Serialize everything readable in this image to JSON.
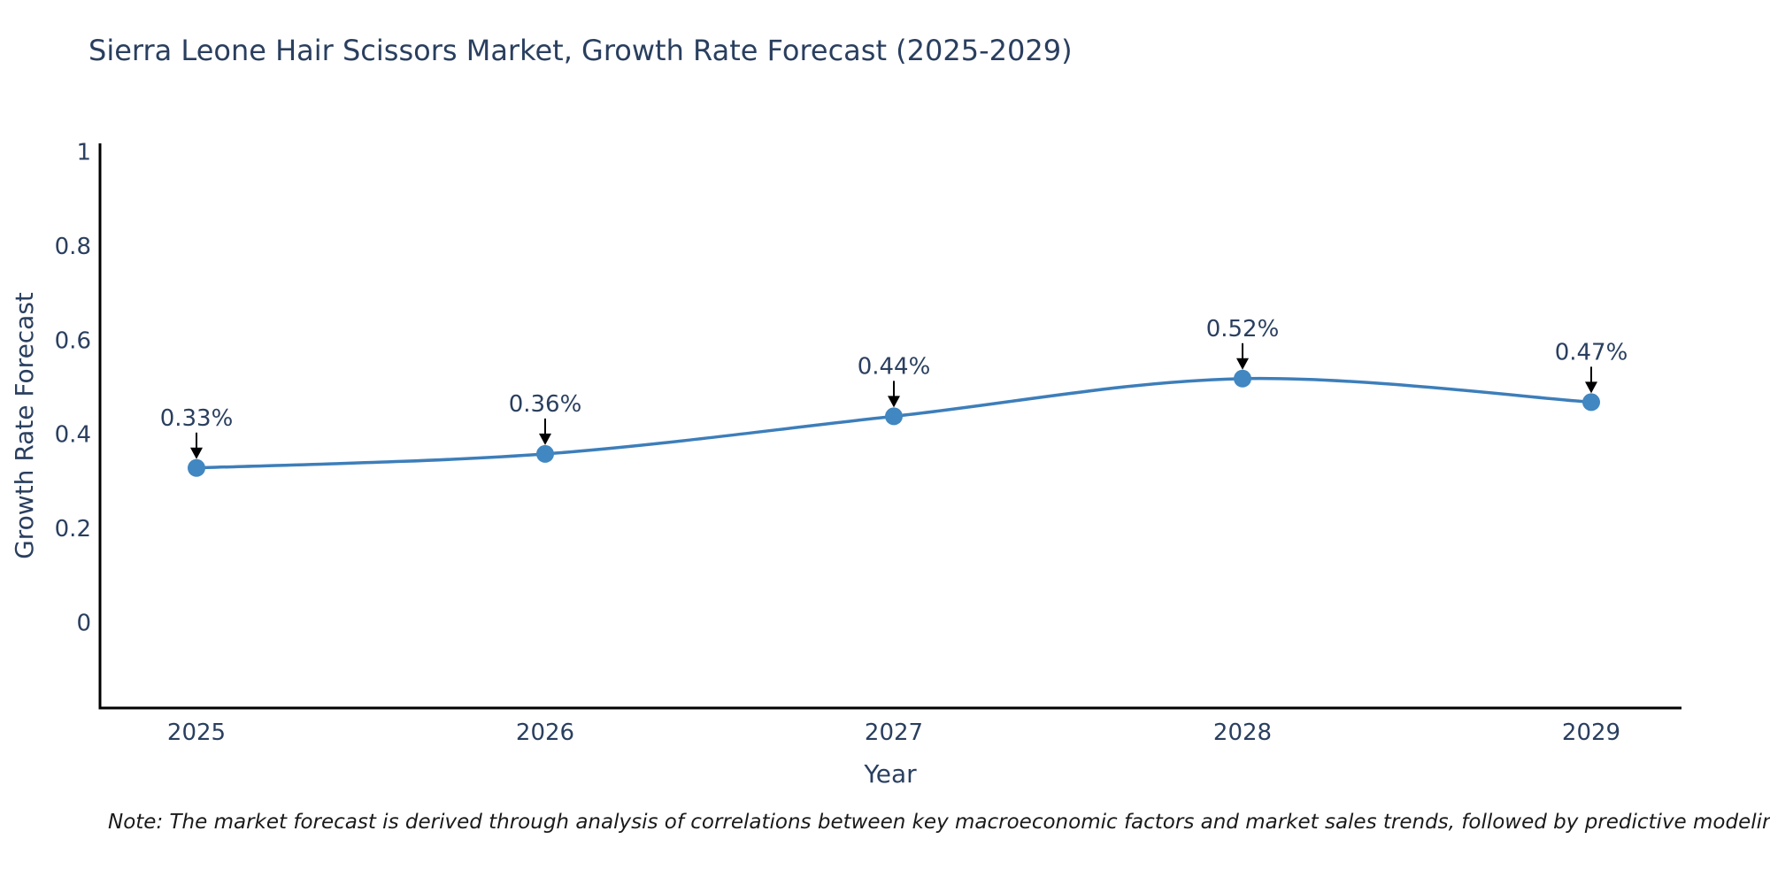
{
  "chart_data": {
    "type": "line",
    "title": "Sierra Leone Hair Scissors Market, Growth Rate Forecast (2025-2029)",
    "xlabel": "Year",
    "ylabel": "Growth Rate Forecast",
    "categories": [
      "2025",
      "2026",
      "2027",
      "2028",
      "2029"
    ],
    "values": [
      0.33,
      0.36,
      0.44,
      0.52,
      0.47
    ],
    "point_labels": [
      "0.33%",
      "0.36%",
      "0.44%",
      "0.52%",
      "0.47%"
    ],
    "unit": "%",
    "yticks": [
      0,
      0.2,
      0.4,
      0.6,
      0.8,
      1
    ],
    "ytick_labels": [
      "0",
      "0.2",
      "0.4",
      "0.6",
      "0.8",
      "1"
    ],
    "ylim": [
      -0.18,
      1.02
    ],
    "grid": false,
    "legend": "none",
    "line_shape": "spline",
    "line_color": "#3d7eba",
    "marker_color": "#4187c1",
    "axis_color": "#000000",
    "text_color": "#2a3f5f",
    "annotation_arrow_color": "#000000",
    "note": "Note: The market forecast is derived through analysis of correlations between key macroeconomic factors and market sales trends, followed by predictive modeling to project future sales"
  }
}
